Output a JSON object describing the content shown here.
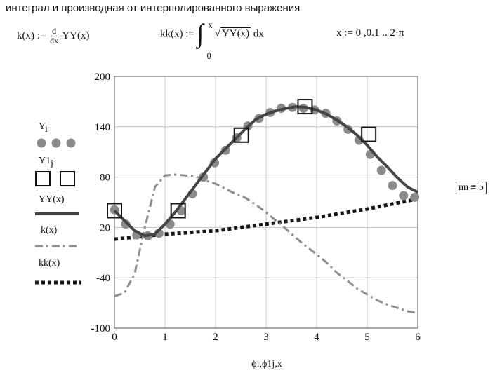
{
  "heading": "интеграл и производная от интерполированного выражения",
  "formulas": {
    "k_lhs": "k(x) :=",
    "k_d_num": "d",
    "k_d_den": "dx",
    "k_rhs": "YY(x)",
    "kk_lhs": "kk(x) :=",
    "kk_upper": "x",
    "kk_lower": "0",
    "kk_sqrt": "YY(x)",
    "kk_dx": "dx",
    "range": "x := 0 ,0.1 .. 2·π"
  },
  "nn_def": "nn ≡ 5",
  "chart_data": {
    "type": "line",
    "xlabel": "ϕi,ϕ1j,x",
    "xlim": [
      0,
      6
    ],
    "ylim": [
      -100,
      200
    ],
    "xticks": [
      "0",
      "1",
      "2",
      "3",
      "4",
      "5",
      "6"
    ],
    "yticks": [
      "-100",
      "-40",
      "20",
      "80",
      "140",
      "200"
    ],
    "ytick_values": [
      -100,
      -40,
      20,
      80,
      140,
      200
    ],
    "grid": true,
    "legend_position": "left",
    "legend": [
      {
        "label": "Yi",
        "style": "dots"
      },
      {
        "label": "Y1j",
        "style": "squares"
      },
      {
        "label": "YY(x)",
        "style": "solid"
      },
      {
        "label": "k(x)",
        "style": "dash-dot"
      },
      {
        "label": "kk(x)",
        "style": "dotted"
      }
    ],
    "colors": {
      "YY": "#444444",
      "Yi": "#8a8a8a",
      "k": "#8e8e8e",
      "kk": "#151515",
      "grid": "#c4c4c4"
    },
    "series": [
      {
        "name": "Yi",
        "x": [
          0,
          0.22,
          0.44,
          0.66,
          0.88,
          1.1,
          1.32,
          1.54,
          1.76,
          1.98,
          2.2,
          2.42,
          2.64,
          2.86,
          3.08,
          3.3,
          3.52,
          3.74,
          3.96,
          4.18,
          4.4,
          4.62,
          4.84,
          5.06,
          5.28,
          5.5,
          5.72,
          5.94
        ],
        "y": [
          41,
          24,
          11,
          10,
          13,
          24,
          40,
          60,
          80,
          97,
          112,
          127,
          141,
          150,
          157,
          162,
          163,
          162,
          160,
          156,
          147,
          137,
          124,
          107,
          88,
          70,
          58,
          56
        ]
      },
      {
        "name": "Y1j",
        "x": [
          0,
          1.26,
          2.51,
          3.77,
          5.03
        ],
        "y": [
          40,
          40,
          130,
          164,
          131
        ]
      },
      {
        "name": "YY(x)",
        "x": [
          0,
          0.2,
          0.4,
          0.6,
          0.8,
          1.0,
          1.2,
          1.4,
          1.6,
          1.8,
          2.0,
          2.2,
          2.4,
          2.6,
          2.8,
          3.0,
          3.2,
          3.4,
          3.6,
          3.8,
          4.0,
          4.2,
          4.4,
          4.6,
          4.8,
          5.0,
          5.2,
          5.4,
          5.6,
          5.8,
          6.0
        ],
        "y": [
          40,
          28,
          16,
          10,
          12,
          24,
          38,
          54,
          70,
          86,
          102,
          114,
          126,
          138,
          149,
          155,
          159,
          162,
          164,
          163,
          160,
          155,
          148,
          140,
          130,
          118,
          104,
          92,
          79,
          68,
          62
        ]
      },
      {
        "name": "k(x)",
        "x": [
          0,
          0.2,
          0.4,
          0.6,
          0.8,
          1.0,
          1.2,
          1.4,
          1.6,
          1.8,
          2.0,
          2.2,
          2.4,
          2.6,
          2.8,
          3.0,
          3.2,
          3.4,
          3.6,
          3.8,
          4.0,
          4.2,
          4.4,
          4.6,
          4.8,
          5.0,
          5.2,
          5.4,
          5.6,
          5.8,
          6.0
        ],
        "y": [
          -62,
          -58,
          -35,
          20,
          68,
          82,
          83,
          82,
          81,
          76,
          72,
          66,
          60,
          55,
          47,
          38,
          28,
          18,
          7,
          -3,
          -12,
          -22,
          -34,
          -43,
          -53,
          -60,
          -67,
          -72,
          -76,
          -80,
          -82
        ]
      },
      {
        "name": "kk(x)",
        "x": [
          0,
          0.5,
          1.0,
          1.5,
          2.0,
          2.5,
          3.0,
          3.5,
          4.0,
          4.5,
          5.0,
          5.5,
          6.0
        ],
        "y": [
          6,
          9,
          12,
          14,
          16,
          20,
          24,
          28,
          32,
          37,
          42,
          48,
          54
        ]
      }
    ]
  }
}
